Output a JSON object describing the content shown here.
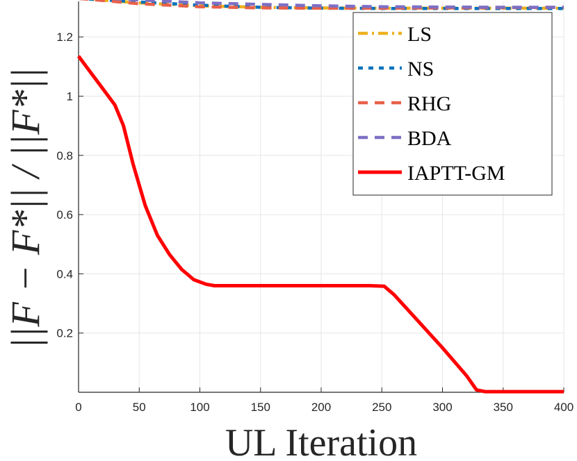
{
  "chart_data": {
    "type": "line",
    "xlabel": "UL Iteration",
    "ylabel": "||F − F*|| / ||F*||",
    "xlim": [
      0,
      400
    ],
    "ylim": [
      0,
      1.32
    ],
    "x_ticks": [
      "0",
      "50",
      "100",
      "150",
      "200",
      "250",
      "300",
      "350",
      "400"
    ],
    "y_ticks": [
      "0.2",
      "0.4",
      "0.6",
      "0.8",
      "1",
      "1.2"
    ],
    "grid": true,
    "legend_position": "top-right",
    "series": [
      {
        "name": "LS",
        "color": "#EDB120",
        "dash": "dashdot",
        "x": [
          0,
          50,
          100,
          150,
          200,
          250,
          300,
          350,
          400
        ],
        "y": [
          1.33,
          1.315,
          1.305,
          1.3,
          1.298,
          1.297,
          1.297,
          1.297,
          1.297
        ]
      },
      {
        "name": "NS",
        "color": "#0072BD",
        "dash": "dotted",
        "x": [
          0,
          50,
          100,
          150,
          200,
          250,
          300,
          350,
          400
        ],
        "y": [
          1.33,
          1.318,
          1.307,
          1.3,
          1.297,
          1.296,
          1.296,
          1.296,
          1.296
        ]
      },
      {
        "name": "RHG",
        "color": "#E8604A",
        "dash": "dashed",
        "x": [
          0,
          50,
          100,
          150,
          200,
          250,
          300,
          350,
          400
        ],
        "y": [
          1.33,
          1.312,
          1.302,
          1.298,
          1.297,
          1.297,
          1.298,
          1.299,
          1.3
        ]
      },
      {
        "name": "BDA",
        "color": "#7E6FC4",
        "dash": "dashed",
        "x": [
          0,
          50,
          100,
          150,
          200,
          250,
          300,
          350,
          400
        ],
        "y": [
          1.335,
          1.325,
          1.315,
          1.31,
          1.305,
          1.302,
          1.301,
          1.3,
          1.3
        ]
      },
      {
        "name": "IAPTT-GM",
        "color": "#FF0000",
        "dash": "solid",
        "x": [
          0,
          10,
          20,
          30,
          37,
          45,
          55,
          65,
          75,
          85,
          95,
          105,
          112,
          120,
          150,
          200,
          240,
          252,
          260,
          280,
          300,
          320,
          328,
          335,
          340,
          360,
          400
        ],
        "y": [
          1.135,
          1.08,
          1.025,
          0.97,
          0.9,
          0.77,
          0.63,
          0.53,
          0.465,
          0.415,
          0.38,
          0.365,
          0.36,
          0.36,
          0.36,
          0.36,
          0.36,
          0.358,
          0.33,
          0.24,
          0.15,
          0.055,
          0.008,
          0.002,
          0.002,
          0.002,
          0.002
        ]
      }
    ]
  }
}
